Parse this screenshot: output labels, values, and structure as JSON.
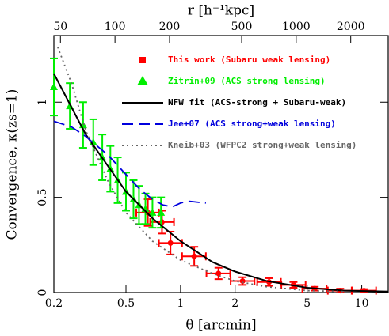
{
  "chart_data": {
    "type": "line",
    "xlabel": "θ [arcmin]",
    "ylabel": "Convergence, κ(zs=1)",
    "x2label": "r [h⁻¹kpc]",
    "xscale": "log",
    "xlim": [
      0.2,
      14
    ],
    "xticks": [
      0.2,
      0.5,
      1,
      2,
      5,
      10
    ],
    "x2scale": "log",
    "x2lim": [
      46,
      3220
    ],
    "x2ticks": [
      50,
      100,
      200,
      500,
      1000,
      2000
    ],
    "ylim": [
      0,
      1.35
    ],
    "yticks": [
      0,
      0.5,
      1
    ],
    "series": [
      {
        "name": "This work (Subaru weak lensing)",
        "kind": "points",
        "marker": "square",
        "color": "#ff0000",
        "x": [
          0.66,
          0.79,
          0.88,
          1.19,
          1.62,
          2.2,
          3.08,
          4.2,
          5.5,
          7.6,
          10.3
        ],
        "values": [
          0.42,
          0.37,
          0.26,
          0.19,
          0.1,
          0.06,
          0.055,
          0.04,
          0.02,
          0.01,
          0.01
        ],
        "yerr": [
          0.07,
          0.06,
          0.06,
          0.05,
          0.03,
          0.02,
          0.02,
          0.015,
          0.01,
          0.01,
          0.008
        ],
        "xerr": [
          [
            0.57,
            0.76
          ],
          [
            0.68,
            0.92
          ],
          [
            0.76,
            1.02
          ],
          [
            1.02,
            1.38
          ],
          [
            1.39,
            1.88
          ],
          [
            1.89,
            2.56
          ],
          [
            2.65,
            3.58
          ],
          [
            3.6,
            4.9
          ],
          [
            4.7,
            6.4
          ],
          [
            6.5,
            8.8
          ],
          [
            8.9,
            12.0
          ]
        ]
      },
      {
        "name": "Zitrin+09 (ACS strong lensing)",
        "kind": "points",
        "marker": "triangle",
        "color": "#00ee00",
        "x": [
          0.2,
          0.245,
          0.29,
          0.33,
          0.37,
          0.41,
          0.45,
          0.5,
          0.55,
          0.59,
          0.64,
          0.7,
          0.78
        ],
        "values": [
          1.08,
          0.98,
          0.88,
          0.79,
          0.71,
          0.65,
          0.59,
          0.53,
          0.49,
          0.46,
          0.44,
          0.42,
          0.42
        ],
        "yerr": [
          0.15,
          0.12,
          0.12,
          0.12,
          0.12,
          0.12,
          0.12,
          0.1,
          0.1,
          0.1,
          0.08,
          0.08,
          0.08
        ]
      },
      {
        "name": "NFW fit (ACS-strong + Subaru-weak)",
        "kind": "line",
        "style": "solid",
        "color": "#000000",
        "x": [
          0.2,
          0.3,
          0.5,
          0.7,
          1,
          1.5,
          2,
          3,
          5,
          8,
          14
        ],
        "values": [
          1.15,
          0.83,
          0.53,
          0.39,
          0.27,
          0.16,
          0.11,
          0.06,
          0.025,
          0.01,
          0.005
        ]
      },
      {
        "name": "Jee+07 (ACS strong+weak lensing)",
        "kind": "line",
        "style": "dashed",
        "color": "#0000dd",
        "x": [
          0.2,
          0.25,
          0.3,
          0.4,
          0.5,
          0.6,
          0.7,
          0.8,
          0.9,
          1.0,
          1.1,
          1.38
        ],
        "values": [
          0.9,
          0.87,
          0.82,
          0.72,
          0.62,
          0.54,
          0.49,
          0.46,
          0.45,
          0.47,
          0.48,
          0.47
        ]
      },
      {
        "name": "Kneib+03 (WFPC2 strong+weak lensing)",
        "kind": "line",
        "style": "dotted",
        "color": "#666666",
        "x": [
          0.21,
          0.25,
          0.3,
          0.4,
          0.5,
          0.7,
          1,
          1.5,
          2,
          3,
          5,
          8
        ],
        "values": [
          1.29,
          1.1,
          0.85,
          0.58,
          0.42,
          0.27,
          0.17,
          0.1,
          0.06,
          0.03,
          0.01,
          0.005
        ]
      }
    ]
  }
}
